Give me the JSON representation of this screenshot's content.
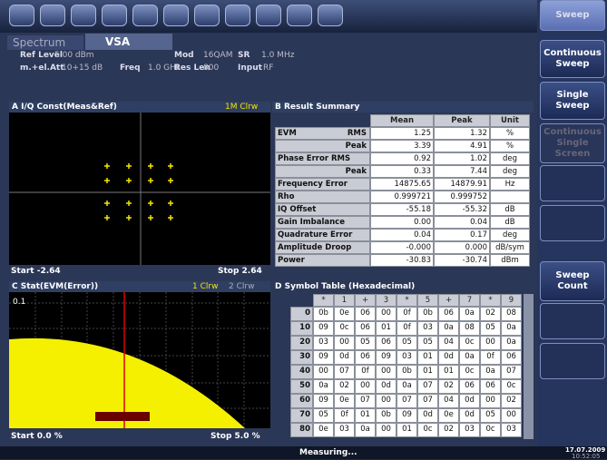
{
  "softkeys": [
    "Sweep",
    "Continuous Sweep",
    "Single Sweep",
    "Continuous Single Screen",
    "Sweep Count"
  ],
  "tabs": [
    "Spectrum",
    "VSA"
  ],
  "settings": [
    {
      "label": "Ref Level",
      "value": "5.00 dBm"
    },
    {
      "label": "Mod",
      "value": "16QAM"
    },
    {
      "label": "SR",
      "value": "1.0 MHz"
    },
    {
      "label": "m.+el.Att",
      "value": "10+15 dB"
    },
    {
      "label": "Freq",
      "value": "1.0 GHz"
    },
    {
      "label": "Res Len",
      "value": "800"
    },
    {
      "label": "Input",
      "value": "RF"
    }
  ],
  "panel_a": {
    "title": "A I/Q Const(Meas&Ref)",
    "trace": "1M Clrw",
    "start": "Start -2.64",
    "stop": "Stop 2.64"
  },
  "result_summary": {
    "title": "B Result Summary",
    "headers": [
      "Mean",
      "Peak",
      "Unit"
    ],
    "rows": [
      {
        "label": "EVM",
        "sub": "RMS",
        "mean": "1.25",
        "peak": "1.32",
        "unit": "%"
      },
      {
        "sub": "Peak",
        "mean": "3.39",
        "peak": "4.91",
        "unit": "%"
      },
      {
        "label": "Phase Error RMS",
        "mean": "0.92",
        "peak": "1.02",
        "unit": "deg"
      },
      {
        "sub": "Peak",
        "mean": "0.33",
        "peak": "7.44",
        "unit": "deg"
      },
      {
        "label": "Frequency Error",
        "mean": "14875.65",
        "peak": "14879.91",
        "unit": "Hz"
      },
      {
        "label": "Rho",
        "mean": "0.999721",
        "peak": "0.999752"
      },
      {
        "label": "IQ Offset",
        "mean": "-55.18",
        "peak": "-55.32",
        "unit": "dB"
      },
      {
        "label": "Gain Imbalance",
        "mean": "0.00",
        "peak": "0.04",
        "unit": "dB"
      },
      {
        "label": "Quadrature Error",
        "mean": "0.04",
        "peak": "0.17",
        "unit": "deg"
      },
      {
        "label": "Amplitude Droop",
        "mean": "-0.000",
        "peak": "0.000",
        "unit": "dB/sym"
      },
      {
        "label": "Power",
        "mean": "-30.83",
        "peak": "-30.74",
        "unit": "dBm"
      }
    ]
  },
  "panel_c": {
    "title": "C Stat(EVM(Error))",
    "traces": [
      "1 Clrw",
      "2 Clrw"
    ],
    "y_label": "0.1",
    "start": "Start 0.0 %",
    "stop": "Stop 5.0 %"
  },
  "symbol_table": {
    "title": "D Symbol Table (Hexadecimal)",
    "headers": [
      "*",
      "1",
      "+",
      "3",
      "*",
      "5",
      "+",
      "7",
      "*",
      "9"
    ],
    "rows": [
      {
        "index": "0",
        "cells": [
          "0b",
          "0e",
          "06",
          "00",
          "0f",
          "0b",
          "06",
          "0a",
          "02",
          "08"
        ]
      },
      {
        "index": "10",
        "cells": [
          "09",
          "0c",
          "06",
          "01",
          "0f",
          "03",
          "0a",
          "08",
          "05",
          "0a"
        ]
      },
      {
        "index": "20",
        "cells": [
          "03",
          "00",
          "05",
          "06",
          "05",
          "05",
          "04",
          "0c",
          "00",
          "0a"
        ]
      },
      {
        "index": "30",
        "cells": [
          "09",
          "0d",
          "06",
          "09",
          "03",
          "01",
          "0d",
          "0a",
          "0f",
          "06"
        ]
      },
      {
        "index": "40",
        "cells": [
          "00",
          "07",
          "0f",
          "00",
          "0b",
          "01",
          "01",
          "0c",
          "0a",
          "07"
        ]
      },
      {
        "index": "50",
        "cells": [
          "0a",
          "02",
          "00",
          "0d",
          "0a",
          "07",
          "02",
          "06",
          "06",
          "0c"
        ]
      },
      {
        "index": "60",
        "cells": [
          "09",
          "0e",
          "07",
          "00",
          "07",
          "07",
          "04",
          "0d",
          "00",
          "02"
        ]
      },
      {
        "index": "70",
        "cells": [
          "05",
          "0f",
          "01",
          "0b",
          "09",
          "0d",
          "0e",
          "0d",
          "05",
          "00"
        ]
      },
      {
        "index": "80",
        "cells": [
          "0e",
          "03",
          "0a",
          "00",
          "01",
          "0c",
          "02",
          "03",
          "0c",
          "03"
        ]
      }
    ]
  },
  "status": {
    "state": "Measuring...",
    "date": "17.07.2009",
    "time": "10:52:05"
  }
}
